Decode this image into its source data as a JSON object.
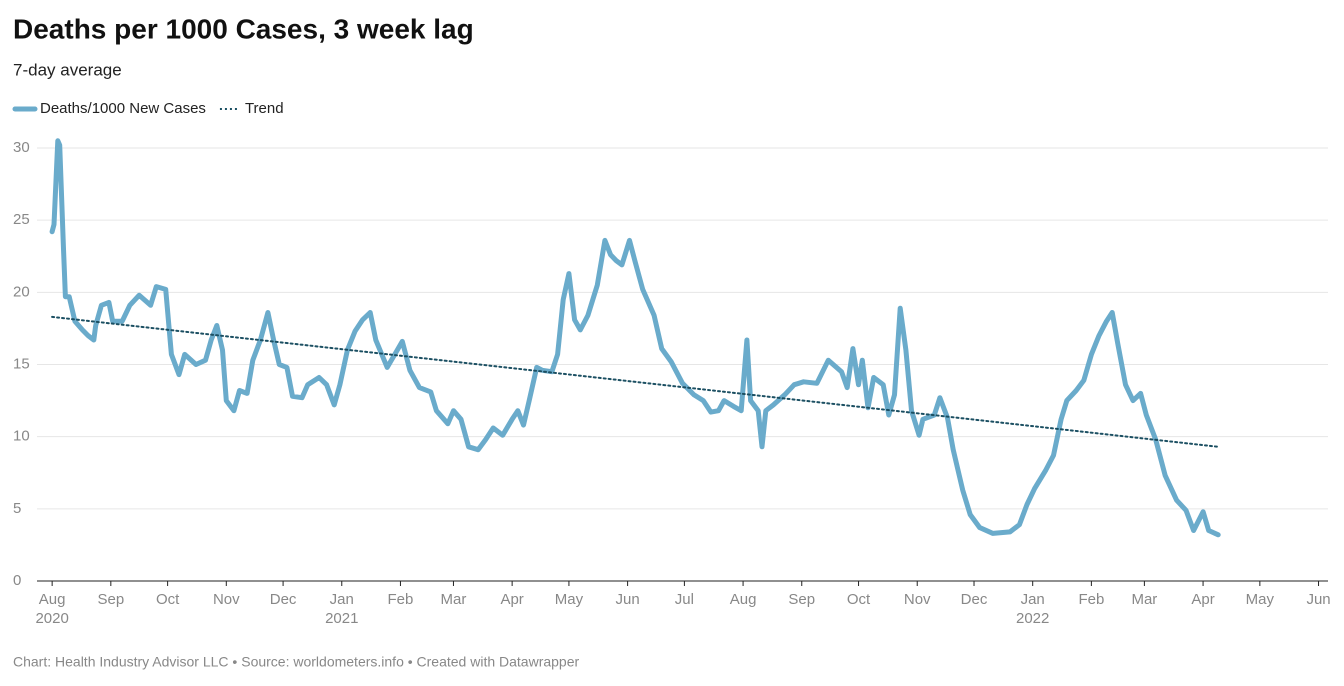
{
  "chart_data": {
    "type": "line",
    "title": "Deaths per 1000 Cases, 3 week lag",
    "subtitle": "7-day average",
    "footer": "Chart: Health Industry Advisor LLC • Source: worldometers.info • Created with Datawrapper",
    "xlim": [
      "2020-07-24",
      "2022-06-06"
    ],
    "xticks": [
      {
        "value": "2020-08",
        "label": "Aug",
        "year": "2020"
      },
      {
        "value": "2020-09",
        "label": "Sep"
      },
      {
        "value": "2020-10",
        "label": "Oct"
      },
      {
        "value": "2020-11",
        "label": "Nov"
      },
      {
        "value": "2020-12",
        "label": "Dec"
      },
      {
        "value": "2021-01",
        "label": "Jan",
        "year": "2021"
      },
      {
        "value": "2021-02",
        "label": "Feb"
      },
      {
        "value": "2021-03",
        "label": "Mar"
      },
      {
        "value": "2021-04",
        "label": "Apr"
      },
      {
        "value": "2021-05",
        "label": "May"
      },
      {
        "value": "2021-06",
        "label": "Jun"
      },
      {
        "value": "2021-07",
        "label": "Jul"
      },
      {
        "value": "2021-08",
        "label": "Aug"
      },
      {
        "value": "2021-09",
        "label": "Sep"
      },
      {
        "value": "2021-10",
        "label": "Oct"
      },
      {
        "value": "2021-11",
        "label": "Nov"
      },
      {
        "value": "2021-12",
        "label": "Dec"
      },
      {
        "value": "2022-01",
        "label": "Jan",
        "year": "2022"
      },
      {
        "value": "2022-02",
        "label": "Feb"
      },
      {
        "value": "2022-03",
        "label": "Mar"
      },
      {
        "value": "2022-04",
        "label": "Apr"
      },
      {
        "value": "2022-05",
        "label": "May"
      },
      {
        "value": "2022-06",
        "label": "Jun"
      }
    ],
    "ylim": [
      0,
      30
    ],
    "yticks": [
      0,
      5,
      10,
      15,
      20,
      25,
      30
    ],
    "grid": true,
    "series": [
      {
        "name": "Deaths/1000 New Cases",
        "color": "#6aabcb",
        "style": "solid",
        "x": [
          "2020-08-01",
          "2020-08-02",
          "2020-08-04",
          "2020-08-05",
          "2020-08-07",
          "2020-08-08",
          "2020-08-10",
          "2020-08-13",
          "2020-08-17",
          "2020-08-20",
          "2020-08-23",
          "2020-08-24",
          "2020-08-27",
          "2020-08-31",
          "2020-09-02",
          "2020-09-07",
          "2020-09-11",
          "2020-09-16",
          "2020-09-22",
          "2020-09-25",
          "2020-09-30",
          "2020-10-03",
          "2020-10-07",
          "2020-10-10",
          "2020-10-16",
          "2020-10-21",
          "2020-10-24",
          "2020-10-27",
          "2020-10-30",
          "2020-11-01",
          "2020-11-05",
          "2020-11-08",
          "2020-11-12",
          "2020-11-15",
          "2020-11-19",
          "2020-11-23",
          "2020-11-26",
          "2020-11-29",
          "2020-12-03",
          "2020-12-06",
          "2020-12-11",
          "2020-12-14",
          "2020-12-20",
          "2020-12-24",
          "2020-12-28",
          "2020-12-31",
          "2021-01-04",
          "2021-01-08",
          "2021-01-12",
          "2021-01-16",
          "2021-01-19",
          "2021-01-25",
          "2021-01-29",
          "2021-02-02",
          "2021-02-06",
          "2021-02-11",
          "2021-02-17",
          "2021-02-20",
          "2021-02-26",
          "2021-03-01",
          "2021-03-05",
          "2021-03-09",
          "2021-03-14",
          "2021-03-18",
          "2021-03-22",
          "2021-03-27",
          "2021-04-01",
          "2021-04-04",
          "2021-04-07",
          "2021-04-10",
          "2021-04-14",
          "2021-04-17",
          "2021-04-22",
          "2021-04-25",
          "2021-04-28",
          "2021-05-01",
          "2021-05-04",
          "2021-05-07",
          "2021-05-11",
          "2021-05-16",
          "2021-05-20",
          "2021-05-23",
          "2021-05-26",
          "2021-05-29",
          "2021-06-02",
          "2021-06-05",
          "2021-06-09",
          "2021-06-15",
          "2021-06-19",
          "2021-06-24",
          "2021-06-30",
          "2021-07-06",
          "2021-07-11",
          "2021-07-15",
          "2021-07-19",
          "2021-07-22",
          "2021-07-27",
          "2021-07-31",
          "2021-08-03",
          "2021-08-05",
          "2021-08-09",
          "2021-08-11",
          "2021-08-13",
          "2021-08-17",
          "2021-08-23",
          "2021-08-28",
          "2021-09-02",
          "2021-09-09",
          "2021-09-15",
          "2021-09-22",
          "2021-09-25",
          "2021-09-28",
          "2021-10-01",
          "2021-10-03",
          "2021-10-06",
          "2021-10-09",
          "2021-10-14",
          "2021-10-17",
          "2021-10-20",
          "2021-10-23",
          "2021-10-26",
          "2021-10-29",
          "2021-11-02",
          "2021-11-04",
          "2021-11-10",
          "2021-11-13",
          "2021-11-17",
          "2021-11-20",
          "2021-11-25",
          "2021-11-29",
          "2021-12-04",
          "2021-12-11",
          "2021-12-20",
          "2021-12-25",
          "2021-12-29",
          "2022-01-02",
          "2022-01-08",
          "2022-01-12",
          "2022-01-16",
          "2022-01-19",
          "2022-01-24",
          "2022-01-28",
          "2022-02-01",
          "2022-02-05",
          "2022-02-09",
          "2022-02-12",
          "2022-02-15",
          "2022-02-19",
          "2022-02-23",
          "2022-02-27",
          "2022-03-02",
          "2022-03-07",
          "2022-03-12",
          "2022-03-18",
          "2022-03-23",
          "2022-03-27",
          "2022-04-01",
          "2022-04-04",
          "2022-04-09"
        ],
        "values": [
          24.2,
          24.7,
          30.5,
          30.2,
          23,
          19.7,
          19.7,
          18,
          17.4,
          17,
          16.7,
          17.7,
          19.1,
          19.3,
          18,
          18,
          19.1,
          19.8,
          19.1,
          20.4,
          20.2,
          15.7,
          14.3,
          15.7,
          15,
          15.3,
          16.7,
          17.7,
          16,
          12.5,
          11.8,
          13.2,
          13,
          15.3,
          16.7,
          18.6,
          16.7,
          15,
          14.8,
          12.8,
          12.7,
          13.6,
          14.1,
          13.6,
          12.2,
          13.6,
          16,
          17.3,
          18.1,
          18.6,
          16.7,
          14.8,
          15.7,
          16.6,
          14.6,
          13.4,
          13.1,
          11.8,
          10.9,
          11.8,
          11.2,
          9.3,
          9.1,
          9.8,
          10.6,
          10.1,
          11.2,
          11.8,
          10.8,
          12.5,
          14.8,
          14.6,
          14.5,
          15.7,
          19.5,
          21.3,
          18.1,
          17.4,
          18.4,
          20.5,
          23.6,
          22.6,
          22.2,
          21.9,
          23.6,
          22.1,
          20.2,
          18.4,
          16.1,
          15.2,
          13.7,
          12.9,
          12.5,
          11.7,
          11.8,
          12.5,
          12.1,
          11.8,
          16.7,
          12.5,
          11.8,
          9.3,
          11.8,
          12.2,
          12.9,
          13.6,
          13.8,
          13.7,
          15.3,
          14.5,
          13.4,
          16.1,
          13.6,
          15.3,
          12,
          14.1,
          13.6,
          11.5,
          12.9,
          18.9,
          16,
          11.8,
          10.1,
          11.2,
          11.5,
          12.7,
          11.3,
          9.1,
          6.3,
          4.6,
          3.7,
          3.3,
          3.4,
          3.9,
          5.3,
          6.4,
          7.7,
          8.7,
          11.2,
          12.5,
          13.2,
          13.9,
          15.7,
          17,
          18,
          18.6,
          16.4,
          13.6,
          12.5,
          13,
          11.5,
          9.8,
          7.3,
          5.6,
          4.9,
          3.5,
          4.8,
          3.5,
          3.2
        ]
      },
      {
        "name": "Trend",
        "color": "#1b4f62",
        "style": "dotted",
        "x": [
          "2020-08-01",
          "2022-04-09"
        ],
        "values": [
          18.3,
          9.3
        ]
      }
    ]
  }
}
